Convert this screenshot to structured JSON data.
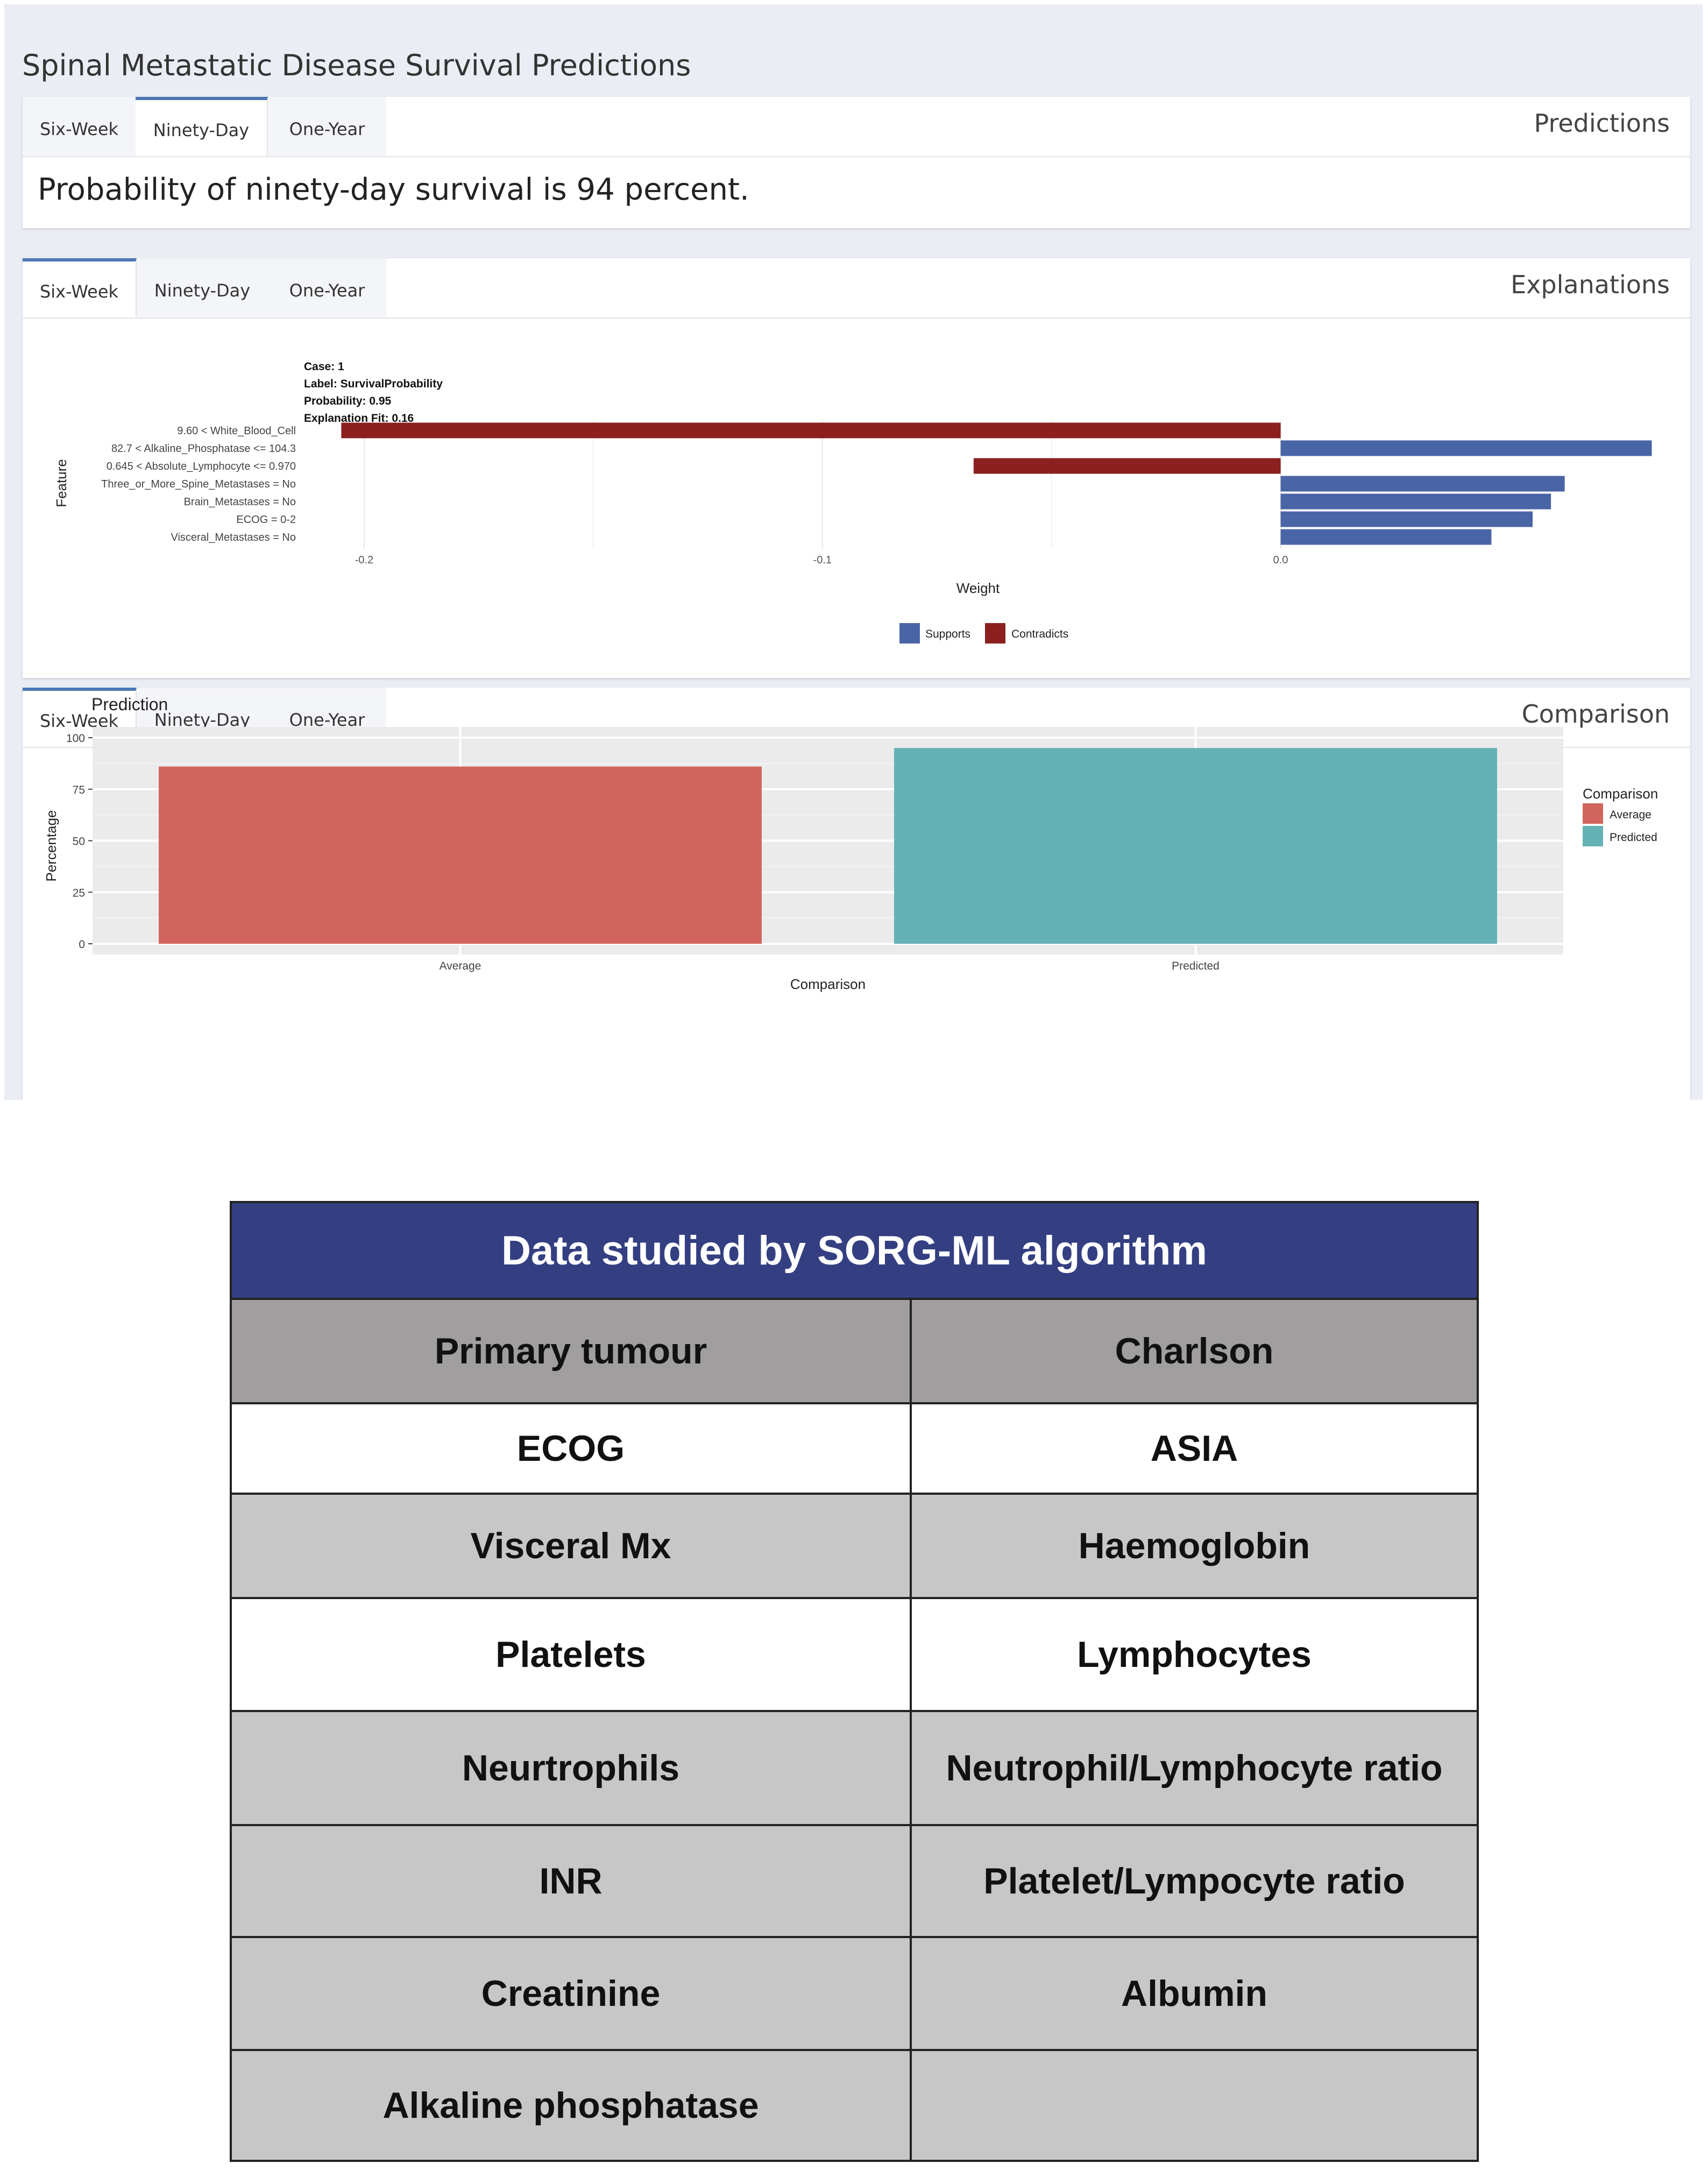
{
  "app": {
    "title": "Spinal Metastatic Disease Survival Predictions"
  },
  "predictions": {
    "heading": "Predictions",
    "tabs": [
      {
        "label": "Six-Week"
      },
      {
        "label": "Ninety-Day"
      },
      {
        "label": "One-Year"
      }
    ],
    "active_tab": 1,
    "text": "Probability of ninety-day survival is 94 percent."
  },
  "explanations": {
    "heading": "Explanations",
    "tabs": [
      {
        "label": "Six-Week"
      },
      {
        "label": "Ninety-Day"
      },
      {
        "label": "One-Year"
      }
    ],
    "active_tab": 0
  },
  "comparison": {
    "heading": "Comparison",
    "tabs": [
      {
        "label": "Six-Week"
      },
      {
        "label": "Ninety-Day"
      },
      {
        "label": "One-Year"
      }
    ],
    "active_tab": 0
  },
  "chart_data": [
    {
      "type": "bar",
      "orientation": "horizontal",
      "info_lines": [
        "Case: 1",
        "Label: SurvivalProbability",
        "Probability: 0.95",
        "Explanation Fit: 0.16"
      ],
      "xlabel": "Weight",
      "ylabel": "Feature",
      "xlim": [
        -0.2,
        0.08
      ],
      "xticks": [
        -0.2,
        -0.1,
        0.0
      ],
      "xtick_labels": [
        "-0.2",
        "-0.1",
        "0.0"
      ],
      "grid": true,
      "legend": {
        "placement": "bottom",
        "entries": [
          {
            "label": "Supports",
            "color": "#4a65a6"
          },
          {
            "label": "Contradicts",
            "color": "#8c1f1f"
          }
        ]
      },
      "categories": [
        "9.60 < White_Blood_Cell",
        "82.7 < Alkaline_Phosphatase <= 104.3",
        "0.645 < Absolute_Lymphocyte <= 0.970",
        "Three_or_More_Spine_Metastases = No",
        "Brain_Metastases = No",
        "ECOG = 0-2",
        "Visceral_Metastases = No"
      ],
      "values": [
        -0.205,
        0.081,
        -0.067,
        0.062,
        0.059,
        0.055,
        0.046
      ]
    },
    {
      "type": "bar",
      "title": "Prediction",
      "xlabel": "Comparison",
      "ylabel": "Percentage",
      "ylim": [
        0,
        100
      ],
      "yticks": [
        0,
        25,
        50,
        75,
        100
      ],
      "categories": [
        "Average",
        "Predicted"
      ],
      "values": [
        86,
        95
      ],
      "colors": [
        "#d1655d",
        "#64b1b6"
      ],
      "grid": true,
      "legend": {
        "title": "Comparison",
        "placement": "right",
        "entries": [
          {
            "label": "Average",
            "color": "#d1655d"
          },
          {
            "label": "Predicted",
            "color": "#64b1b6"
          }
        ]
      }
    }
  ],
  "table": {
    "title": "Data studied by SORG-ML algorithm",
    "header": [
      "Primary tumour",
      "Charlson"
    ],
    "rows": [
      [
        "ECOG",
        "ASIA"
      ],
      [
        "Visceral Mx",
        "Haemoglobin"
      ],
      [
        "Platelets",
        "Lymphocytes"
      ],
      [
        "Neurtrophils",
        "Neutrophil/Lymphocyte ratio"
      ],
      [
        "INR",
        "Platelet/Lympocyte ratio"
      ],
      [
        "Creatinine",
        "Albumin"
      ],
      [
        "Alkaline phosphatase",
        ""
      ]
    ],
    "colors": {
      "title_bg": "#343f82",
      "header_bg": "#a09e9e",
      "alt_bg": "#c8c7c8",
      "white_bg": "#ffffff"
    }
  }
}
